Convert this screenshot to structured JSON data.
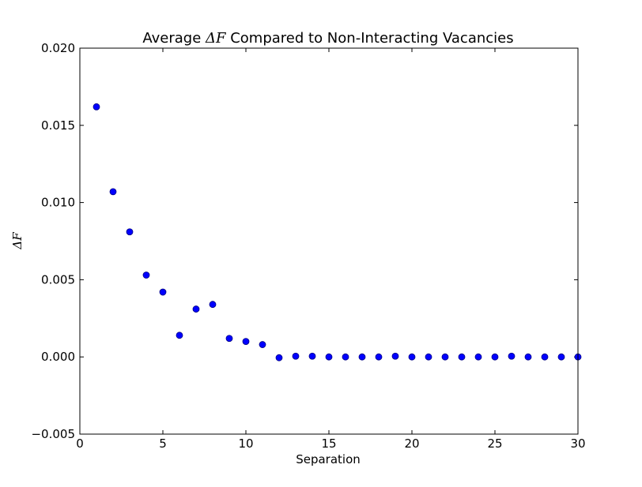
{
  "chart_data": {
    "type": "scatter",
    "title_prefix": "Average ",
    "title_math": "ΔF",
    "title_suffix": " Compared to Non-Interacting Vacancies",
    "xlabel": "Separation",
    "ylabel": "ΔF",
    "xlim": [
      0,
      30
    ],
    "ylim": [
      -0.005,
      0.02
    ],
    "xticks": [
      0,
      5,
      10,
      15,
      20,
      25,
      30
    ],
    "xtick_labels": [
      "0",
      "5",
      "10",
      "15",
      "20",
      "25",
      "30"
    ],
    "yticks": [
      -0.005,
      0,
      0.005,
      0.01,
      0.015,
      0.02
    ],
    "ytick_labels": [
      "−0.005",
      "0.000",
      "0.005",
      "0.010",
      "0.015",
      "0.020"
    ],
    "grid": false,
    "marker_color": "#0000ff",
    "marker_edge_color": "#000080",
    "series": [
      {
        "x": [
          1,
          2,
          3,
          4,
          5,
          6,
          7,
          8,
          9,
          10,
          11,
          12,
          13,
          14,
          15,
          16,
          17,
          18,
          19,
          20,
          21,
          22,
          23,
          24,
          25,
          26,
          27,
          28,
          29,
          30
        ],
        "values": [
          0.0162,
          0.0107,
          0.0081,
          0.0053,
          0.0042,
          0.0014,
          0.0031,
          0.0034,
          0.0012,
          0.001,
          0.0008,
          -5e-05,
          5e-05,
          5e-05,
          0.0,
          0.0,
          0.0,
          0.0,
          5e-05,
          0.0,
          0.0,
          0.0,
          0.0,
          0.0,
          0.0,
          5e-05,
          0.0,
          0.0,
          0.0,
          0.0
        ]
      }
    ]
  }
}
